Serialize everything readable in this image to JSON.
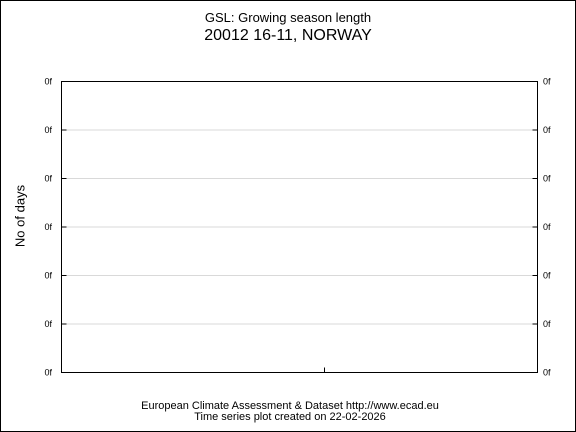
{
  "chart_data": {
    "type": "line",
    "title": "GSL: Growing season length",
    "subtitle": "20012 16-11, NORWAY",
    "xlabel": "",
    "ylabel": "No of days",
    "y_ticks": [
      "0f",
      "0f",
      "0f",
      "0f",
      "0f",
      "0f",
      "0f"
    ],
    "x_ticks": [],
    "series": [],
    "grid": true,
    "legend": "none"
  },
  "footer": {
    "line1": "European Climate Assessment & Dataset  http://www.ecad.eu",
    "line2": "Time series plot created on 22-02-2026"
  }
}
